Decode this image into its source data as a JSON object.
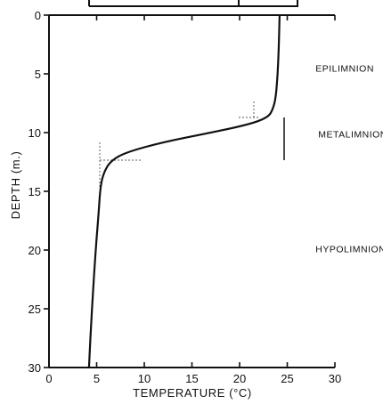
{
  "chart_data": {
    "type": "line",
    "xlabel": "TEMPERATURE (°C)",
    "ylabel": "DEPTH (m.)",
    "xlim": [
      0,
      30
    ],
    "ylim": [
      0,
      30
    ],
    "y_inverted": true,
    "x_ticks": [
      "0",
      "5",
      "10",
      "15",
      "20",
      "25",
      "30"
    ],
    "y_ticks": [
      "0",
      "5",
      "10",
      "15",
      "20",
      "25",
      "30"
    ],
    "x_tick_values": [
      0,
      5,
      10,
      15,
      20,
      25,
      30
    ],
    "y_tick_values": [
      0,
      5,
      10,
      15,
      20,
      25,
      30
    ],
    "series": [
      {
        "x": [
          24.2,
          24.1,
          24.0,
          23.8,
          23.5,
          23.0,
          21.0,
          17.0,
          12.0,
          8.0,
          6.5,
          5.8,
          5.4,
          5.2,
          4.9,
          4.5,
          4.2
        ],
        "y": [
          0,
          3,
          5,
          7,
          8,
          8.7,
          9.3,
          10,
          10.8,
          11.7,
          12.4,
          13.3,
          14.5,
          17,
          20,
          25,
          30
        ]
      }
    ],
    "annotations": [
      {
        "text": "EPILIMNION",
        "x": 27.5,
        "y": 4.5
      },
      {
        "text": "METALIMNION",
        "x": 27.5,
        "y": 10.1
      },
      {
        "text": "HYPOLIMNION",
        "x": 27.5,
        "y": 19.9
      }
    ]
  }
}
